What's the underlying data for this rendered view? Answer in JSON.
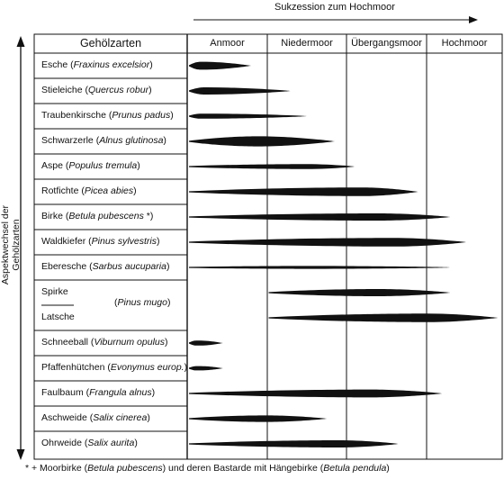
{
  "succession_label": "Sukzession zum Hochmoor",
  "aspect_label": "Aspektwechsel der Gehölzarten",
  "table_header": "Gehölzarten",
  "columns": [
    "Anmoor",
    "Niedermoor",
    "Übergangsmoor",
    "Hochmoor"
  ],
  "rows": [
    {
      "name": "Esche",
      "latin": "Fraxinus excelsior"
    },
    {
      "name": "Stieleiche",
      "latin": "Quercus robur"
    },
    {
      "name": "Traubenkirsche",
      "latin": "Prunus padus"
    },
    {
      "name": "Schwarzerle",
      "latin": "Alnus glutinosa"
    },
    {
      "name": "Aspe",
      "latin": "Populus tremula"
    },
    {
      "name": "Rotfichte",
      "latin": "Picea abies"
    },
    {
      "name": "Birke",
      "latin": "Betula pubescens",
      "suffix": " *)"
    },
    {
      "name": "Waldkiefer",
      "latin": "Pinus sylvestris"
    },
    {
      "name": "Eberesche",
      "latin": "Sarbus aucuparia"
    },
    {
      "name": "Spirke",
      "latin": ""
    },
    {
      "name": "Latsche",
      "latin": ""
    },
    {
      "name": "Schneeball",
      "latin": "Viburnum opulus"
    },
    {
      "name": "Pfaffenhütchen",
      "latin": "Evonymus europ."
    },
    {
      "name": "Faulbaum",
      "latin": "Frangula alnus"
    },
    {
      "name": "Aschweide",
      "latin": "Salix cinerea"
    },
    {
      "name": "Ohrweide",
      "latin": "Salix aurita"
    }
  ],
  "pinus_mugo_label": "Pinus mugo",
  "footnote": {
    "prefix": "* + Moorbirke (",
    "latin1": "Betula pubescens",
    "middle": ") und deren Bastarde mit Hängebirke (",
    "latin2": "Betula pendula",
    "suffix": ")"
  },
  "shapes": [
    {
      "row": "Esche",
      "start": "Anmoor",
      "peak": 0.2,
      "end": 0.8,
      "thickness": 0.55
    },
    {
      "row": "Stieleiche",
      "start": "Anmoor",
      "peak": 0.25,
      "end": 1.3,
      "thickness": 0.5
    },
    {
      "row": "Traubenkirsche",
      "start": "Anmoor",
      "peak": 0.2,
      "end": 1.5,
      "thickness": 0.35
    },
    {
      "row": "Schwarzerle",
      "start": "Anmoor",
      "peak": 0.9,
      "end": 1.85,
      "thickness": 0.7
    },
    {
      "row": "Aspe",
      "start": "Anmoor",
      "peak": 1.5,
      "end": 2.1,
      "thickness": 0.35
    },
    {
      "row": "Rotfichte",
      "start": "Anmoor",
      "peak": 2.2,
      "end": 2.9,
      "thickness": 0.6
    },
    {
      "row": "Birke",
      "start": "Anmoor",
      "peak": 2.4,
      "end": 3.3,
      "thickness": 0.5
    },
    {
      "row": "Waldkiefer",
      "start": "Anmoor",
      "peak": 2.6,
      "end": 3.5,
      "thickness": 0.6
    },
    {
      "row": "Eberesche",
      "start": "Anmoor",
      "peak": 1.5,
      "end": 3.3,
      "thickness": 0.2
    },
    {
      "row": "Spirke",
      "start": "Niedermoor",
      "peak": 2.4,
      "end": 3.3,
      "thickness": 0.5
    },
    {
      "row": "Latsche",
      "start": "Niedermoor",
      "peak": 3.0,
      "end": 3.9,
      "thickness": 0.6
    },
    {
      "row": "Schneeball",
      "start": "Anmoor",
      "peak": 0.15,
      "end": 0.45,
      "thickness": 0.35
    },
    {
      "row": "Pfaffenhütchen",
      "start": "Anmoor",
      "peak": 0.15,
      "end": 0.45,
      "thickness": 0.3
    },
    {
      "row": "Faulbaum",
      "start": "Anmoor",
      "peak": 2.3,
      "end": 3.2,
      "thickness": 0.55
    },
    {
      "row": "Aschweide",
      "start": "Anmoor",
      "peak": 1.0,
      "end": 1.75,
      "thickness": 0.45
    },
    {
      "row": "Ohrweide",
      "start": "Anmoor",
      "peak": 1.9,
      "end": 2.65,
      "thickness": 0.5
    }
  ]
}
